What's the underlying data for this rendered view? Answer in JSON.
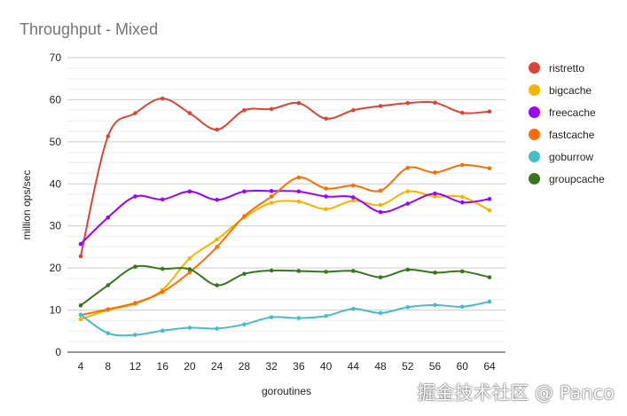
{
  "chart_data": {
    "type": "line",
    "title": "Throughput - Mixed",
    "xlabel": "goroutines",
    "ylabel": "million ops/sec",
    "ylim": [
      0,
      70
    ],
    "yticks": [
      0,
      10,
      20,
      30,
      40,
      50,
      60,
      70
    ],
    "grid": true,
    "smooth": true,
    "legend_position": "right",
    "x": [
      4,
      8,
      12,
      16,
      20,
      24,
      28,
      32,
      36,
      40,
      44,
      48,
      52,
      56,
      60,
      64
    ],
    "series": [
      {
        "name": "ristretto",
        "color": "#db4437",
        "values": [
          22.8,
          51.3,
          56.8,
          60.3,
          56.8,
          52.9,
          57.5,
          57.8,
          59.2,
          55.5,
          57.5,
          58.5,
          59.2,
          59.3,
          56.9,
          57.2
        ]
      },
      {
        "name": "bigcache",
        "color": "#f4b400",
        "values": [
          7.8,
          10.0,
          11.5,
          14.8,
          22.3,
          26.8,
          32.0,
          35.5,
          35.8,
          34.0,
          36.0,
          35.0,
          38.2,
          37.0,
          36.9,
          33.7
        ]
      },
      {
        "name": "freecache",
        "color": "#9900ff",
        "values": [
          25.7,
          32.0,
          37.0,
          36.3,
          38.2,
          36.2,
          38.2,
          38.3,
          38.2,
          37.0,
          36.8,
          33.3,
          35.3,
          37.7,
          35.6,
          36.4
        ]
      },
      {
        "name": "fastcache",
        "color": "#ff6d00",
        "values": [
          8.8,
          10.2,
          11.7,
          14.3,
          19.0,
          25.0,
          32.3,
          37.0,
          41.5,
          38.9,
          39.6,
          38.4,
          43.8,
          42.7,
          44.5,
          43.7
        ]
      },
      {
        "name": "goburrow",
        "color": "#46bdc6",
        "values": [
          8.9,
          4.5,
          4.1,
          5.1,
          5.8,
          5.6,
          6.6,
          8.3,
          8.1,
          8.6,
          10.3,
          9.3,
          10.7,
          11.2,
          10.8,
          12.0
        ]
      },
      {
        "name": "groupcache",
        "color": "#38761d",
        "values": [
          11.1,
          15.9,
          20.3,
          19.8,
          19.7,
          15.9,
          18.6,
          19.4,
          19.3,
          19.1,
          19.3,
          17.8,
          19.6,
          18.9,
          19.2,
          17.8
        ]
      }
    ]
  },
  "watermark": "掘金技术社区 @ Panco"
}
